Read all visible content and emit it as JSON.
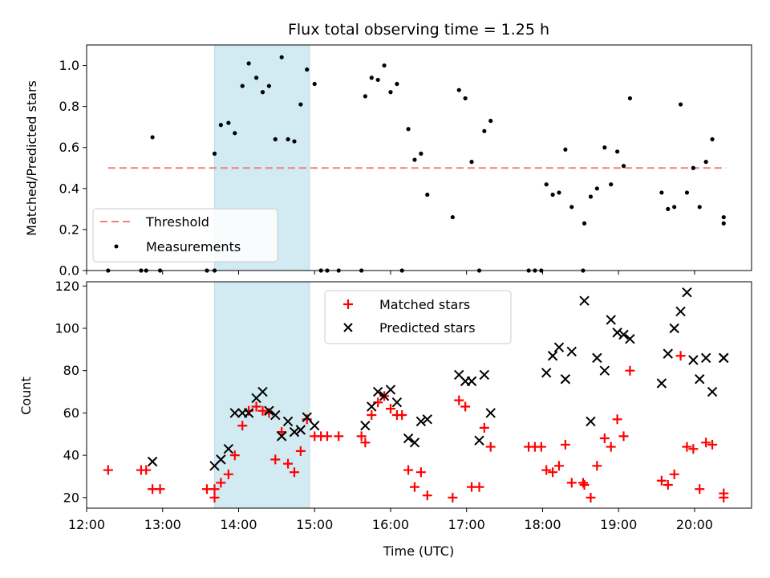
{
  "chart_data": [
    {
      "type": "scatter",
      "title": "Flux total observing time = 1.25 h",
      "xlabel": "",
      "ylabel": "Matched/Predicted stars",
      "xlim": [
        "12:00",
        "20:45"
      ],
      "ylim": [
        0,
        1.1
      ],
      "yticks": [
        0.0,
        0.2,
        0.4,
        0.6,
        0.8,
        1.0
      ],
      "ytick_labels": [
        "0.0",
        "0.2",
        "0.4",
        "0.6",
        "0.8",
        "1.0"
      ],
      "shaded_span": {
        "start": "13:41",
        "end": "14:56",
        "color": "#add8e6"
      },
      "legend": {
        "location": "lower-left",
        "entries": [
          "Threshold",
          "Measurements"
        ]
      },
      "threshold": {
        "name": "Threshold",
        "value": 0.5,
        "x_start": "12:17",
        "x_end": "20:25",
        "color": "#f08080",
        "style": "dashed"
      },
      "series": [
        {
          "name": "Measurements",
          "color": "#000000",
          "points": [
            [
              "12:17",
              0.0
            ],
            [
              "12:43",
              0.0
            ],
            [
              "12:47",
              0.0
            ],
            [
              "12:52",
              0.65
            ],
            [
              "12:58",
              0.0
            ],
            [
              "13:35",
              0.0
            ],
            [
              "13:41",
              0.57
            ],
            [
              "13:41",
              0.0
            ],
            [
              "13:46",
              0.71
            ],
            [
              "13:52",
              0.72
            ],
            [
              "13:57",
              0.67
            ],
            [
              "14:03",
              0.9
            ],
            [
              "14:08",
              1.01
            ],
            [
              "14:14",
              0.94
            ],
            [
              "14:19",
              0.87
            ],
            [
              "14:24",
              0.9
            ],
            [
              "14:29",
              0.64
            ],
            [
              "14:34",
              1.04
            ],
            [
              "14:39",
              0.64
            ],
            [
              "14:44",
              0.63
            ],
            [
              "14:49",
              0.81
            ],
            [
              "14:54",
              0.98
            ],
            [
              "15:00",
              0.91
            ],
            [
              "15:05",
              0.0
            ],
            [
              "15:10",
              0.0
            ],
            [
              "15:19",
              0.0
            ],
            [
              "15:37",
              0.0
            ],
            [
              "15:40",
              0.85
            ],
            [
              "15:45",
              0.94
            ],
            [
              "15:50",
              0.93
            ],
            [
              "15:55",
              1.0
            ],
            [
              "16:00",
              0.87
            ],
            [
              "16:05",
              0.91
            ],
            [
              "16:09",
              0.0
            ],
            [
              "16:14",
              0.69
            ],
            [
              "16:19",
              0.54
            ],
            [
              "16:24",
              0.57
            ],
            [
              "16:29",
              0.37
            ],
            [
              "16:49",
              0.26
            ],
            [
              "16:54",
              0.88
            ],
            [
              "16:59",
              0.84
            ],
            [
              "17:04",
              0.53
            ],
            [
              "17:10",
              0.0
            ],
            [
              "17:14",
              0.68
            ],
            [
              "17:19",
              0.73
            ],
            [
              "17:49",
              0.0
            ],
            [
              "17:54",
              0.0
            ],
            [
              "17:59",
              0.0
            ],
            [
              "18:03",
              0.42
            ],
            [
              "18:08",
              0.37
            ],
            [
              "18:13",
              0.38
            ],
            [
              "18:18",
              0.59
            ],
            [
              "18:23",
              0.31
            ],
            [
              "18:32",
              0.0
            ],
            [
              "18:33",
              0.23
            ],
            [
              "18:38",
              0.36
            ],
            [
              "18:43",
              0.4
            ],
            [
              "18:49",
              0.6
            ],
            [
              "18:54",
              0.42
            ],
            [
              "18:59",
              0.58
            ],
            [
              "19:04",
              0.51
            ],
            [
              "19:09",
              0.84
            ],
            [
              "19:34",
              0.38
            ],
            [
              "19:39",
              0.3
            ],
            [
              "19:44",
              0.31
            ],
            [
              "19:49",
              0.81
            ],
            [
              "19:54",
              0.38
            ],
            [
              "19:59",
              0.5
            ],
            [
              "20:04",
              0.31
            ],
            [
              "20:09",
              0.53
            ],
            [
              "20:14",
              0.64
            ],
            [
              "20:23",
              0.23
            ],
            [
              "20:23",
              0.26
            ]
          ]
        }
      ]
    },
    {
      "type": "scatter",
      "title": "",
      "xlabel": "Time (UTC)",
      "ylabel": "Count",
      "xlim": [
        "12:00",
        "20:45"
      ],
      "ylim": [
        15,
        122
      ],
      "xticks": [
        "12:00",
        "13:00",
        "14:00",
        "15:00",
        "16:00",
        "17:00",
        "18:00",
        "19:00",
        "20:00"
      ],
      "yticks": [
        20,
        40,
        60,
        80,
        100,
        120
      ],
      "ytick_labels": [
        "20",
        "40",
        "60",
        "80",
        "100",
        "120"
      ],
      "shaded_span": {
        "start": "13:41",
        "end": "14:56",
        "color": "#add8e6"
      },
      "legend": {
        "location": "upper-center",
        "entries": [
          "Matched stars",
          "Predicted stars"
        ]
      },
      "series": [
        {
          "name": "Matched stars",
          "color": "#ff0000",
          "marker": "plus",
          "points": [
            [
              "12:17",
              33
            ],
            [
              "12:43",
              33
            ],
            [
              "12:47",
              33
            ],
            [
              "12:52",
              24
            ],
            [
              "12:58",
              24
            ],
            [
              "13:35",
              24
            ],
            [
              "13:41",
              24
            ],
            [
              "13:41",
              20
            ],
            [
              "13:46",
              27
            ],
            [
              "13:52",
              31
            ],
            [
              "13:57",
              40
            ],
            [
              "14:03",
              54
            ],
            [
              "14:08",
              61
            ],
            [
              "14:14",
              63
            ],
            [
              "14:19",
              61
            ],
            [
              "14:24",
              60
            ],
            [
              "14:29",
              38
            ],
            [
              "14:34",
              51
            ],
            [
              "14:39",
              36
            ],
            [
              "14:44",
              32
            ],
            [
              "14:49",
              42
            ],
            [
              "14:54",
              57
            ],
            [
              "15:00",
              49
            ],
            [
              "15:05",
              49
            ],
            [
              "15:10",
              49
            ],
            [
              "15:19",
              49
            ],
            [
              "15:37",
              49
            ],
            [
              "15:40",
              46
            ],
            [
              "15:45",
              59
            ],
            [
              "15:50",
              65
            ],
            [
              "15:55",
              68
            ],
            [
              "16:00",
              62
            ],
            [
              "16:05",
              59
            ],
            [
              "16:09",
              59
            ],
            [
              "16:14",
              33
            ],
            [
              "16:19",
              25
            ],
            [
              "16:24",
              32
            ],
            [
              "16:29",
              21
            ],
            [
              "16:49",
              20
            ],
            [
              "16:54",
              66
            ],
            [
              "16:59",
              63
            ],
            [
              "17:04",
              25
            ],
            [
              "17:10",
              25
            ],
            [
              "17:14",
              53
            ],
            [
              "17:19",
              44
            ],
            [
              "17:49",
              44
            ],
            [
              "17:54",
              44
            ],
            [
              "17:59",
              44
            ],
            [
              "18:03",
              33
            ],
            [
              "18:08",
              32
            ],
            [
              "18:13",
              35
            ],
            [
              "18:18",
              45
            ],
            [
              "18:23",
              27
            ],
            [
              "18:32",
              27
            ],
            [
              "18:33",
              26
            ],
            [
              "18:38",
              20
            ],
            [
              "18:43",
              35
            ],
            [
              "18:49",
              48
            ],
            [
              "18:54",
              44
            ],
            [
              "18:59",
              57
            ],
            [
              "19:04",
              49
            ],
            [
              "19:09",
              80
            ],
            [
              "19:34",
              28
            ],
            [
              "19:39",
              26
            ],
            [
              "19:44",
              31
            ],
            [
              "19:49",
              87
            ],
            [
              "19:54",
              44
            ],
            [
              "19:59",
              43
            ],
            [
              "20:04",
              24
            ],
            [
              "20:09",
              46
            ],
            [
              "20:14",
              45
            ],
            [
              "20:23",
              20
            ],
            [
              "20:23",
              22
            ]
          ]
        },
        {
          "name": "Predicted stars",
          "color": "#000000",
          "marker": "x",
          "points": [
            [
              "12:52",
              37
            ],
            [
              "13:41",
              35
            ],
            [
              "13:46",
              38
            ],
            [
              "13:52",
              43
            ],
            [
              "13:57",
              60
            ],
            [
              "14:03",
              60
            ],
            [
              "14:08",
              60
            ],
            [
              "14:14",
              67
            ],
            [
              "14:19",
              70
            ],
            [
              "14:24",
              61
            ],
            [
              "14:29",
              59
            ],
            [
              "14:34",
              49
            ],
            [
              "14:39",
              56
            ],
            [
              "14:44",
              51
            ],
            [
              "14:49",
              52
            ],
            [
              "14:54",
              58
            ],
            [
              "15:00",
              54
            ],
            [
              "15:40",
              54
            ],
            [
              "15:45",
              63
            ],
            [
              "15:50",
              70
            ],
            [
              "15:55",
              68
            ],
            [
              "16:00",
              71
            ],
            [
              "16:05",
              65
            ],
            [
              "16:14",
              48
            ],
            [
              "16:19",
              46
            ],
            [
              "16:24",
              56
            ],
            [
              "16:29",
              57
            ],
            [
              "16:54",
              78
            ],
            [
              "16:59",
              75
            ],
            [
              "17:04",
              75
            ],
            [
              "17:10",
              47
            ],
            [
              "17:14",
              78
            ],
            [
              "17:19",
              60
            ],
            [
              "18:03",
              79
            ],
            [
              "18:08",
              87
            ],
            [
              "18:13",
              91
            ],
            [
              "18:18",
              76
            ],
            [
              "18:23",
              89
            ],
            [
              "18:33",
              113
            ],
            [
              "18:38",
              56
            ],
            [
              "18:43",
              86
            ],
            [
              "18:49",
              80
            ],
            [
              "18:54",
              104
            ],
            [
              "18:59",
              98
            ],
            [
              "19:04",
              97
            ],
            [
              "19:09",
              95
            ],
            [
              "19:34",
              74
            ],
            [
              "19:39",
              88
            ],
            [
              "19:44",
              100
            ],
            [
              "19:49",
              108
            ],
            [
              "19:54",
              117
            ],
            [
              "19:59",
              85
            ],
            [
              "20:04",
              76
            ],
            [
              "20:09",
              86
            ],
            [
              "20:14",
              70
            ],
            [
              "20:23",
              86
            ],
            [
              "20:23",
              86
            ]
          ]
        }
      ]
    }
  ]
}
